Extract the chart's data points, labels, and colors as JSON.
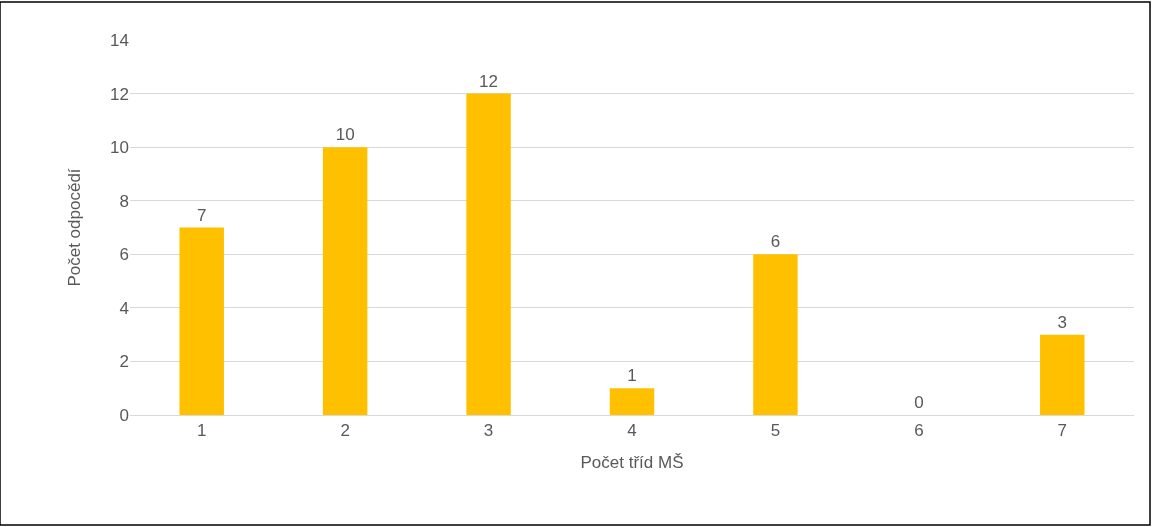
{
  "chart_data": {
    "type": "bar",
    "xlabel": "Počet tříd MŠ",
    "ylabel": "Počet odpocědí",
    "categories": [
      "1",
      "2",
      "3",
      "4",
      "5",
      "6",
      "7"
    ],
    "values": [
      7,
      10,
      12,
      1,
      6,
      0,
      3
    ],
    "color": "#ffc000",
    "ylim": [
      0,
      14
    ],
    "yticks": [
      0,
      2,
      4,
      6,
      8,
      10,
      12,
      14
    ],
    "grid": "y",
    "data_labels": true
  }
}
